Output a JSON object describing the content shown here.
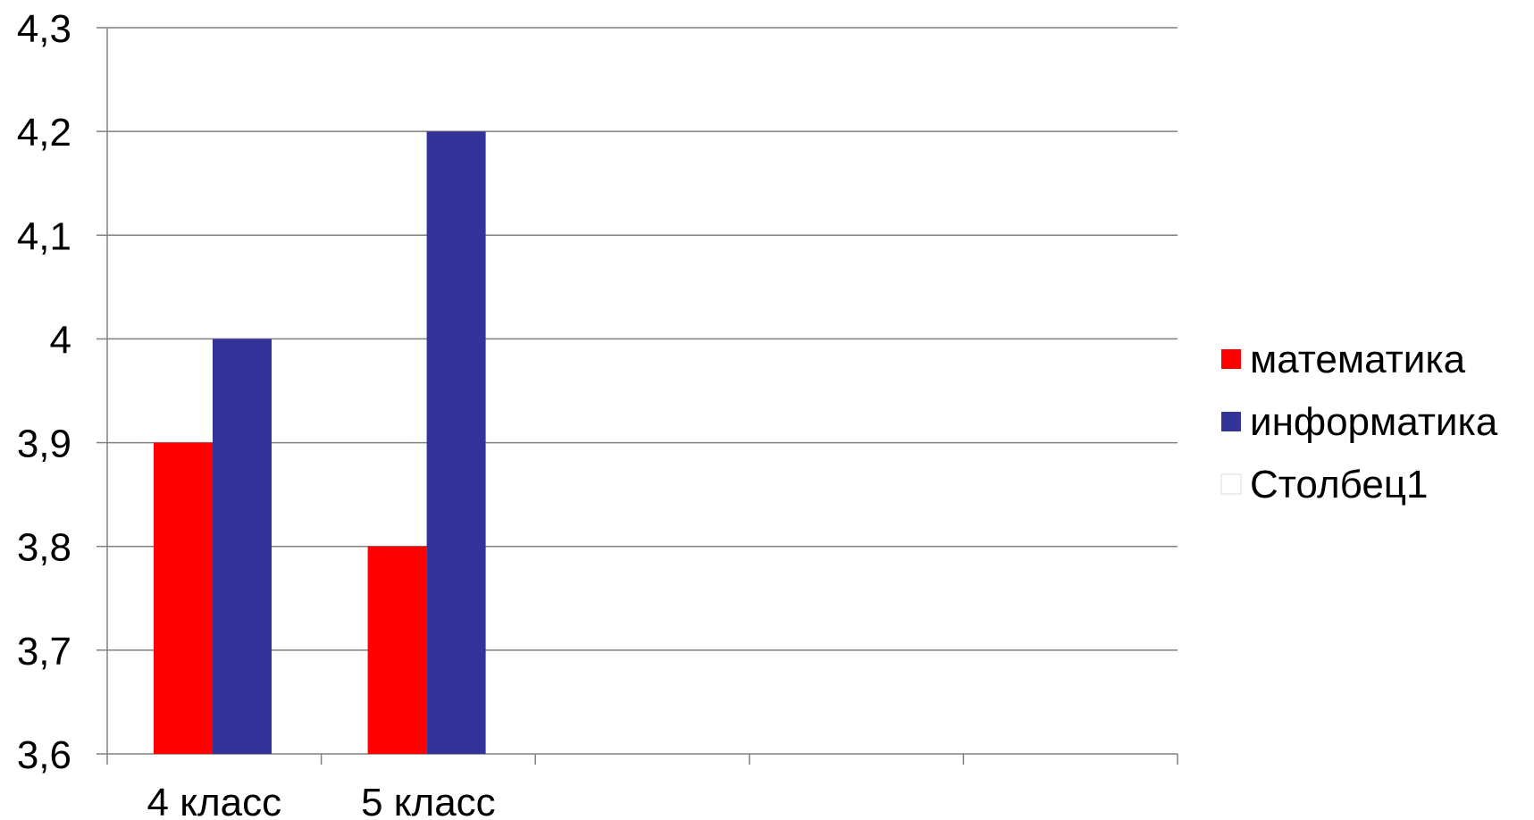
{
  "chart_data": {
    "type": "bar",
    "categories": [
      "4 класс",
      "5 класс",
      "",
      "",
      ""
    ],
    "series": [
      {
        "name": "математика",
        "values": [
          3.9,
          3.8,
          null,
          null,
          null
        ],
        "color": "#FF0000"
      },
      {
        "name": "информатика",
        "values": [
          4.0,
          4.2,
          null,
          null,
          null
        ],
        "color": "#333399"
      },
      {
        "name": "Столбец1",
        "values": [
          null,
          null,
          null,
          null,
          null
        ],
        "color": "#FFFFFF"
      }
    ],
    "yticks": [
      "3,6",
      "3,7",
      "3,8",
      "3,9",
      "4",
      "4,1",
      "4,2",
      "4,3"
    ],
    "ylim": [
      3.6,
      4.3
    ],
    "grid": true,
    "legend_position": "right"
  }
}
